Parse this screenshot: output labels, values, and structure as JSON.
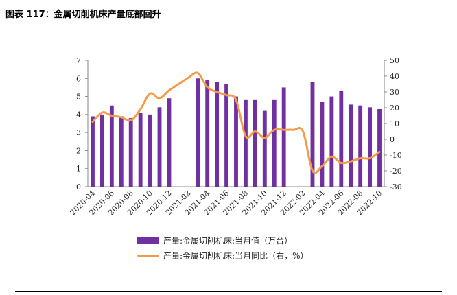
{
  "title": "图表 117：金属切削机床产量底部回升",
  "legend": {
    "bar_label": "产量:金属切削机床:当月值（万台）",
    "line_label": "产量:金属切削机床:当月同比（右，%）"
  },
  "colors": {
    "bar": "#7030A0",
    "line": "#F39A4B",
    "axis": "#888888"
  },
  "chart_data": {
    "type": "bar+line",
    "categories": [
      "2020-04",
      "2020-05",
      "2020-06",
      "2020-07",
      "2020-08",
      "2020-09",
      "2020-10",
      "2020-11",
      "2020-12",
      "2021-01",
      "2021-02",
      "2021-03",
      "2021-04",
      "2021-05",
      "2021-06",
      "2021-07",
      "2021-08",
      "2021-09",
      "2021-10",
      "2021-11",
      "2021-12",
      "2022-01",
      "2022-02",
      "2022-03",
      "2022-04",
      "2022-05",
      "2022-06",
      "2022-07",
      "2022-08",
      "2022-09",
      "2022-10"
    ],
    "x_tick_labels": [
      "2020-04",
      "2020-06",
      "2020-08",
      "2020-10",
      "2020-12",
      "2021-02",
      "2021-04",
      "2021-06",
      "2021-08",
      "2021-10",
      "2021-12",
      "2022-02",
      "2022-04",
      "2022-06",
      "2022-08",
      "2022-10"
    ],
    "series": [
      {
        "name": "产量:金属切削机床:当月值（万台）",
        "axis": "left",
        "type": "bar",
        "values": [
          3.9,
          4.0,
          4.5,
          3.9,
          3.8,
          4.1,
          4.0,
          4.4,
          4.9,
          null,
          null,
          6.0,
          5.9,
          5.8,
          5.7,
          5.0,
          4.8,
          4.8,
          4.2,
          4.8,
          5.5,
          null,
          null,
          5.8,
          4.7,
          5.0,
          5.3,
          4.55,
          4.5,
          4.4,
          4.3
        ]
      },
      {
        "name": "产量:金属切削机床:当月同比（右，%）",
        "axis": "right",
        "type": "line",
        "values": [
          11,
          17,
          15,
          14,
          12,
          19,
          29,
          26,
          31,
          35,
          39,
          42,
          33,
          30,
          28,
          25,
          2,
          5,
          1,
          6,
          6,
          6,
          5,
          -20,
          -17,
          -11,
          -15,
          -14,
          -12,
          -12,
          -8
        ]
      }
    ],
    "y_left": {
      "min": 0,
      "max": 7,
      "ticks": [
        0,
        1,
        2,
        3,
        4,
        5,
        6,
        7
      ]
    },
    "y_right": {
      "min": -30,
      "max": 50,
      "ticks": [
        -30,
        -20,
        -10,
        0,
        10,
        20,
        30,
        40,
        50
      ]
    }
  }
}
